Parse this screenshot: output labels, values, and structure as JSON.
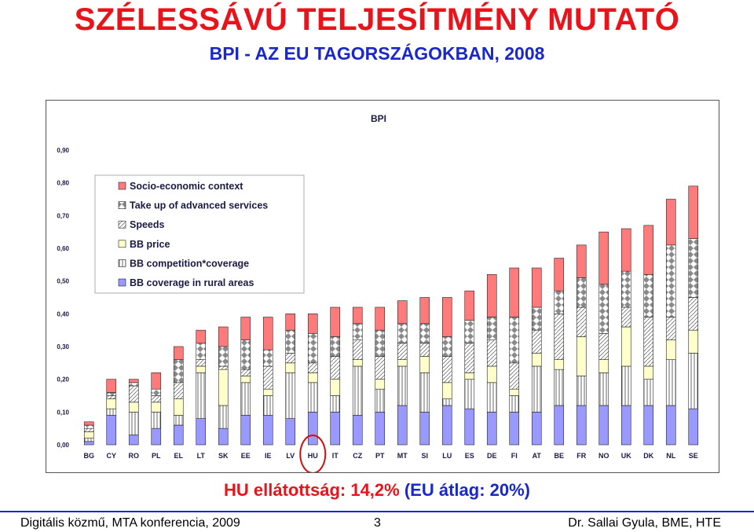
{
  "slide": {
    "title": "SZÉLESSÁVÚ TELJESÍTMÉNY MUTATÓ",
    "subtitle": "BPI - AZ EU TAGORSZÁGOKBAN, 2008",
    "caption_red": "HU ellátottság: 14,2%",
    "caption_blue": "(EU átlag: 20%)",
    "footer_left": "Digitális közmű, MTA konferencia, 2009",
    "footer_page": "3",
    "footer_right": "Dr. Sallai Gyula, BME, HTE"
  },
  "chart_data": {
    "type": "bar",
    "stacked": true,
    "title": "BPI",
    "xlabel": "",
    "ylabel": "",
    "ylim": [
      0,
      0.9
    ],
    "yticks": [
      "0,00",
      "0,10",
      "0,20",
      "0,30",
      "0,40",
      "0,50",
      "0,60",
      "0,70",
      "0,80",
      "0,90"
    ],
    "grid": false,
    "legend_position": "top-left",
    "highlighted_category": "HU",
    "highlight_color": "#d01010",
    "categories": [
      "BG",
      "CY",
      "RO",
      "PL",
      "EL",
      "LT",
      "SK",
      "EE",
      "IE",
      "LV",
      "HU",
      "IT",
      "CZ",
      "PT",
      "MT",
      "SI",
      "LU",
      "ES",
      "DE",
      "FI",
      "AT",
      "BE",
      "FR",
      "NO",
      "UK",
      "DK",
      "NL",
      "SE"
    ],
    "series": [
      {
        "name": "BB coverage in rural areas",
        "color": "#9999ff",
        "pattern": "solid",
        "values": [
          0.01,
          0.09,
          0.03,
          0.05,
          0.06,
          0.08,
          0.05,
          0.09,
          0.09,
          0.08,
          0.1,
          0.1,
          0.09,
          0.1,
          0.12,
          0.1,
          0.12,
          0.11,
          0.1,
          0.1,
          0.1,
          0.12,
          0.12,
          0.12,
          0.12,
          0.12,
          0.12,
          0.11
        ]
      },
      {
        "name": "BB competition*coverage",
        "color": "#ffffff",
        "pattern": "stripes",
        "values": [
          0.01,
          0.02,
          0.07,
          0.05,
          0.03,
          0.14,
          0.07,
          0.1,
          0.06,
          0.14,
          0.09,
          0.05,
          0.15,
          0.07,
          0.12,
          0.12,
          0.02,
          0.09,
          0.09,
          0.05,
          0.14,
          0.11,
          0.09,
          0.1,
          0.12,
          0.08,
          0.14,
          0.17
        ]
      },
      {
        "name": "BB price",
        "color": "#ffffcc",
        "pattern": "solid",
        "values": [
          0.02,
          0.03,
          0.03,
          0.03,
          0.05,
          0.02,
          0.11,
          0.02,
          0.02,
          0.03,
          0.03,
          0.05,
          0.02,
          0.03,
          0.02,
          0.05,
          0.05,
          0.02,
          0.05,
          0.02,
          0.04,
          0.03,
          0.12,
          0.04,
          0.12,
          0.04,
          0.06,
          0.07
        ]
      },
      {
        "name": "Speeds",
        "color": "#ffffff",
        "pattern": "hatch",
        "values": [
          0.01,
          0.01,
          0.05,
          0.02,
          0.05,
          0.02,
          0.01,
          0.02,
          0.07,
          0.03,
          0.03,
          0.07,
          0.06,
          0.07,
          0.05,
          0.04,
          0.08,
          0.09,
          0.08,
          0.08,
          0.07,
          0.14,
          0.09,
          0.08,
          0.06,
          0.15,
          0.07,
          0.1
        ]
      },
      {
        "name": "Take up of advanced services",
        "color": "#ffffff",
        "pattern": "diamonds",
        "values": [
          0.01,
          0.01,
          0.01,
          0.02,
          0.07,
          0.05,
          0.06,
          0.09,
          0.05,
          0.07,
          0.09,
          0.06,
          0.05,
          0.08,
          0.06,
          0.06,
          0.06,
          0.07,
          0.07,
          0.14,
          0.07,
          0.07,
          0.09,
          0.15,
          0.11,
          0.13,
          0.22,
          0.18
        ]
      },
      {
        "name": "Socio-economic context",
        "color": "#ff7a7a",
        "pattern": "solid",
        "values": [
          0.01,
          0.04,
          0.01,
          0.05,
          0.04,
          0.04,
          0.06,
          0.07,
          0.1,
          0.05,
          0.06,
          0.09,
          0.05,
          0.07,
          0.07,
          0.08,
          0.12,
          0.09,
          0.13,
          0.15,
          0.12,
          0.1,
          0.1,
          0.16,
          0.13,
          0.15,
          0.14,
          0.16
        ]
      }
    ]
  }
}
